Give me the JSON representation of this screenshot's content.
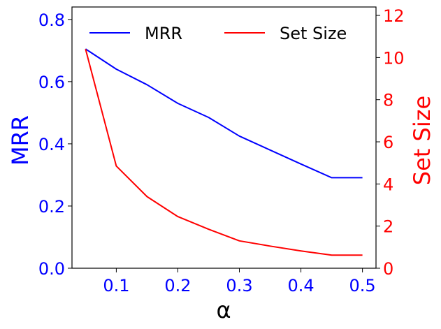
{
  "chart_data": {
    "type": "line",
    "title": "",
    "x": [
      0.05,
      0.1,
      0.15,
      0.2,
      0.25,
      0.3,
      0.35,
      0.4,
      0.45,
      0.5
    ],
    "xlabel": "α",
    "xlim": [
      0.028,
      0.522
    ],
    "xticks": [
      "0.1",
      "0.2",
      "0.3",
      "0.4",
      "0.5"
    ],
    "xtick_values": [
      0.1,
      0.2,
      0.3,
      0.4,
      0.5
    ],
    "grid": false,
    "legend_position": "top",
    "axes": {
      "left": {
        "label": "MRR",
        "color": "#0000ff",
        "ylim": [
          0.0,
          0.84
        ],
        "ticks": [
          "0.0",
          "0.2",
          "0.4",
          "0.6",
          "0.8"
        ],
        "tick_values": [
          0.0,
          0.2,
          0.4,
          0.6,
          0.8
        ]
      },
      "right": {
        "label": "Set Size",
        "color": "#ff0000",
        "ylim": [
          0,
          12.4
        ],
        "ticks": [
          "0",
          "2",
          "4",
          "6",
          "8",
          "10",
          "12"
        ],
        "tick_values": [
          0,
          2,
          4,
          6,
          8,
          10,
          12
        ]
      }
    },
    "series": [
      {
        "name": "MRR",
        "axis": "left",
        "color": "#0000ff",
        "values": [
          0.705,
          0.64,
          0.59,
          0.53,
          0.485,
          0.425,
          0.38,
          0.335,
          0.291,
          0.291
        ]
      },
      {
        "name": "Set Size",
        "axis": "right",
        "color": "#ff0000",
        "values": [
          10.4,
          4.85,
          3.4,
          2.45,
          1.85,
          1.3,
          1.05,
          0.82,
          0.62,
          0.62
        ]
      }
    ]
  }
}
